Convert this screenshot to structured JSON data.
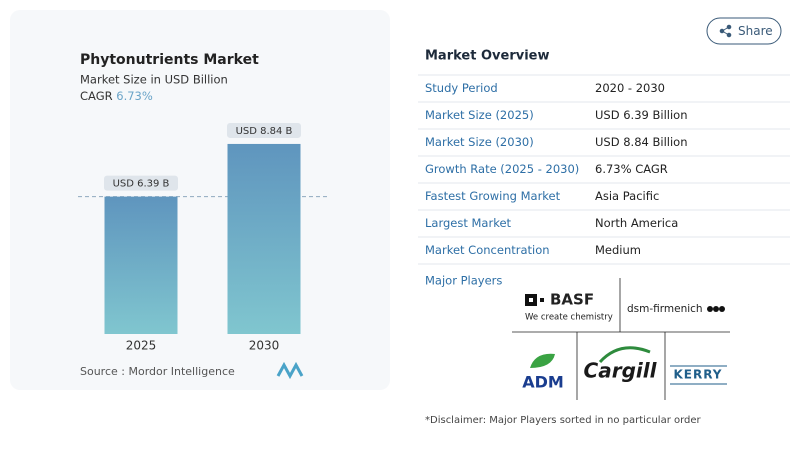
{
  "chart_data": {
    "type": "bar",
    "title": "Phytonutrients Market",
    "subtitle": "Market Size in USD Billion",
    "cagr_label": "CAGR",
    "cagr": "6.73%",
    "categories": [
      "2025",
      "2030"
    ],
    "values": [
      6.39,
      8.84
    ],
    "value_labels": [
      "USD 6.39 B",
      "USD 8.84 B"
    ],
    "color": "#5f95be",
    "ylim": [
      0,
      10
    ],
    "source": "Source : Mordor Intelligence"
  },
  "share": "Share",
  "overview": {
    "title": "Market Overview",
    "rows": [
      [
        "Study Period",
        "2020 - 2030"
      ],
      [
        "Market Size (2025)",
        "USD 6.39 Billion"
      ],
      [
        "Market Size (2030)",
        "USD 8.84 Billion"
      ],
      [
        "Growth Rate (2025 - 2030)",
        "6.73% CAGR"
      ],
      [
        "Fastest Growing Market",
        "Asia Pacific"
      ],
      [
        "Largest Market",
        "North America"
      ],
      [
        "Market Concentration",
        "Medium"
      ]
    ]
  },
  "players": {
    "title": "Major Players",
    "basf": "BASF",
    "basf_tagline": "We create chemistry",
    "dsm": "dsm-firmenich",
    "adm": "ADM",
    "cargill": "Cargill",
    "kerry": "KERRY"
  },
  "disclaimer": "*Disclaimer: Major Players sorted in no particular order"
}
